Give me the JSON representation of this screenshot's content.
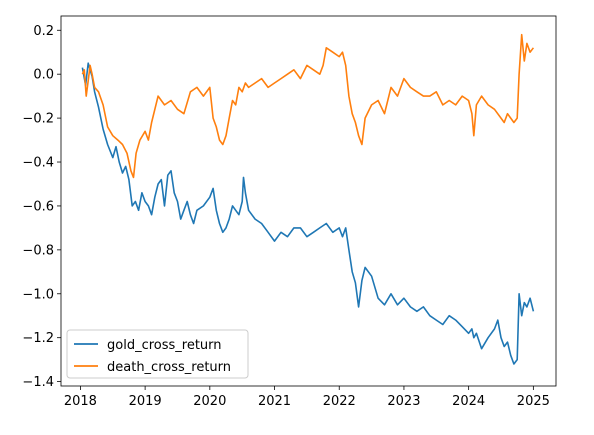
{
  "chart_data": {
    "type": "line",
    "title": "",
    "xlabel": "",
    "ylabel": "",
    "xlim": [
      2017.7,
      2025.35
    ],
    "ylim": [
      -1.42,
      0.265
    ],
    "xticks": [
      2018,
      2019,
      2020,
      2021,
      2022,
      2023,
      2024,
      2025
    ],
    "xtick_labels": [
      "2018",
      "2019",
      "2020",
      "2021",
      "2022",
      "2023",
      "2024",
      "2025"
    ],
    "yticks": [
      0.2,
      0.0,
      -0.2,
      -0.4,
      -0.6,
      -0.8,
      -1.0,
      -1.2,
      -1.4
    ],
    "ytick_labels": [
      "0.2",
      "0.0",
      "−0.2",
      "−0.4",
      "−0.6",
      "−0.8",
      "−1.0",
      "−1.2",
      "−1.4"
    ],
    "grid": false,
    "legend_position": "lower-left",
    "series": [
      {
        "name": "gold_cross_return",
        "color": "#1f77b4",
        "x": [
          2018.03,
          2018.08,
          2018.12,
          2018.15,
          2018.18,
          2018.22,
          2018.28,
          2018.35,
          2018.42,
          2018.5,
          2018.55,
          2018.6,
          2018.65,
          2018.7,
          2018.75,
          2018.8,
          2018.85,
          2018.9,
          2018.95,
          2019.0,
          2019.05,
          2019.1,
          2019.15,
          2019.2,
          2019.25,
          2019.3,
          2019.35,
          2019.4,
          2019.45,
          2019.5,
          2019.55,
          2019.6,
          2019.65,
          2019.7,
          2019.75,
          2019.8,
          2019.9,
          2020.0,
          2020.05,
          2020.1,
          2020.15,
          2020.2,
          2020.25,
          2020.3,
          2020.35,
          2020.4,
          2020.45,
          2020.5,
          2020.52,
          2020.55,
          2020.6,
          2020.7,
          2020.8,
          2020.9,
          2021.0,
          2021.1,
          2021.2,
          2021.3,
          2021.4,
          2021.5,
          2021.6,
          2021.7,
          2021.8,
          2021.9,
          2022.0,
          2022.05,
          2022.1,
          2022.15,
          2022.2,
          2022.25,
          2022.3,
          2022.35,
          2022.4,
          2022.5,
          2022.6,
          2022.7,
          2022.8,
          2022.9,
          2023.0,
          2023.1,
          2023.2,
          2023.3,
          2023.4,
          2023.5,
          2023.6,
          2023.7,
          2023.8,
          2023.9,
          2024.0,
          2024.05,
          2024.08,
          2024.12,
          2024.2,
          2024.3,
          2024.4,
          2024.45,
          2024.5,
          2024.55,
          2024.6,
          2024.65,
          2024.7,
          2024.75,
          2024.78,
          2024.82,
          2024.86,
          2024.9,
          2024.95,
          2025.0
        ],
        "y": [
          0.03,
          -0.05,
          0.05,
          0.02,
          -0.01,
          -0.08,
          -0.15,
          -0.25,
          -0.32,
          -0.38,
          -0.33,
          -0.4,
          -0.45,
          -0.42,
          -0.48,
          -0.6,
          -0.58,
          -0.62,
          -0.54,
          -0.58,
          -0.6,
          -0.64,
          -0.56,
          -0.5,
          -0.48,
          -0.6,
          -0.46,
          -0.44,
          -0.54,
          -0.58,
          -0.66,
          -0.62,
          -0.58,
          -0.64,
          -0.68,
          -0.62,
          -0.6,
          -0.56,
          -0.52,
          -0.62,
          -0.68,
          -0.72,
          -0.7,
          -0.66,
          -0.6,
          -0.62,
          -0.64,
          -0.58,
          -0.47,
          -0.54,
          -0.62,
          -0.66,
          -0.68,
          -0.72,
          -0.76,
          -0.72,
          -0.74,
          -0.7,
          -0.7,
          -0.74,
          -0.72,
          -0.7,
          -0.68,
          -0.72,
          -0.7,
          -0.74,
          -0.7,
          -0.8,
          -0.9,
          -0.95,
          -1.06,
          -0.94,
          -0.88,
          -0.92,
          -1.02,
          -1.05,
          -1.0,
          -1.05,
          -1.02,
          -1.06,
          -1.08,
          -1.06,
          -1.1,
          -1.12,
          -1.14,
          -1.1,
          -1.12,
          -1.15,
          -1.18,
          -1.16,
          -1.2,
          -1.18,
          -1.25,
          -1.2,
          -1.16,
          -1.12,
          -1.2,
          -1.24,
          -1.22,
          -1.28,
          -1.32,
          -1.3,
          -1.0,
          -1.1,
          -1.04,
          -1.06,
          -1.02,
          -1.08
        ]
      },
      {
        "name": "death_cross_return",
        "color": "#ff7f0e",
        "x": [
          2018.03,
          2018.06,
          2018.09,
          2018.12,
          2018.15,
          2018.18,
          2018.22,
          2018.28,
          2018.35,
          2018.42,
          2018.5,
          2018.58,
          2018.65,
          2018.72,
          2018.78,
          2018.82,
          2018.86,
          2018.92,
          2019.0,
          2019.05,
          2019.1,
          2019.2,
          2019.3,
          2019.4,
          2019.5,
          2019.6,
          2019.7,
          2019.8,
          2019.9,
          2020.0,
          2020.05,
          2020.1,
          2020.15,
          2020.2,
          2020.25,
          2020.3,
          2020.35,
          2020.4,
          2020.45,
          2020.5,
          2020.55,
          2020.6,
          2020.7,
          2020.8,
          2020.9,
          2021.0,
          2021.1,
          2021.2,
          2021.3,
          2021.4,
          2021.5,
          2021.6,
          2021.7,
          2021.75,
          2021.8,
          2021.9,
          2022.0,
          2022.05,
          2022.1,
          2022.15,
          2022.2,
          2022.25,
          2022.3,
          2022.35,
          2022.4,
          2022.5,
          2022.6,
          2022.7,
          2022.8,
          2022.9,
          2023.0,
          2023.1,
          2023.2,
          2023.3,
          2023.4,
          2023.5,
          2023.6,
          2023.7,
          2023.8,
          2023.9,
          2024.0,
          2024.05,
          2024.08,
          2024.12,
          2024.2,
          2024.3,
          2024.4,
          2024.5,
          2024.55,
          2024.6,
          2024.65,
          2024.7,
          2024.75,
          2024.78,
          2024.82,
          2024.86,
          2024.9,
          2024.95,
          2025.0
        ],
        "y": [
          0.0,
          0.02,
          -0.1,
          -0.03,
          0.04,
          0.0,
          -0.06,
          -0.08,
          -0.14,
          -0.24,
          -0.28,
          -0.3,
          -0.32,
          -0.36,
          -0.44,
          -0.47,
          -0.36,
          -0.3,
          -0.26,
          -0.3,
          -0.22,
          -0.1,
          -0.14,
          -0.12,
          -0.16,
          -0.18,
          -0.08,
          -0.06,
          -0.1,
          -0.06,
          -0.2,
          -0.24,
          -0.3,
          -0.32,
          -0.28,
          -0.2,
          -0.12,
          -0.14,
          -0.06,
          -0.08,
          -0.04,
          -0.06,
          -0.04,
          -0.02,
          -0.06,
          -0.04,
          -0.02,
          0.0,
          0.02,
          -0.02,
          0.04,
          0.02,
          0.0,
          0.04,
          0.12,
          0.1,
          0.08,
          0.1,
          0.04,
          -0.1,
          -0.18,
          -0.22,
          -0.28,
          -0.32,
          -0.2,
          -0.14,
          -0.12,
          -0.18,
          -0.06,
          -0.1,
          -0.02,
          -0.06,
          -0.08,
          -0.1,
          -0.1,
          -0.08,
          -0.14,
          -0.12,
          -0.14,
          -0.1,
          -0.12,
          -0.18,
          -0.28,
          -0.14,
          -0.1,
          -0.14,
          -0.16,
          -0.2,
          -0.22,
          -0.18,
          -0.2,
          -0.22,
          -0.2,
          0.0,
          0.18,
          0.06,
          0.14,
          0.1,
          0.12
        ]
      }
    ]
  }
}
